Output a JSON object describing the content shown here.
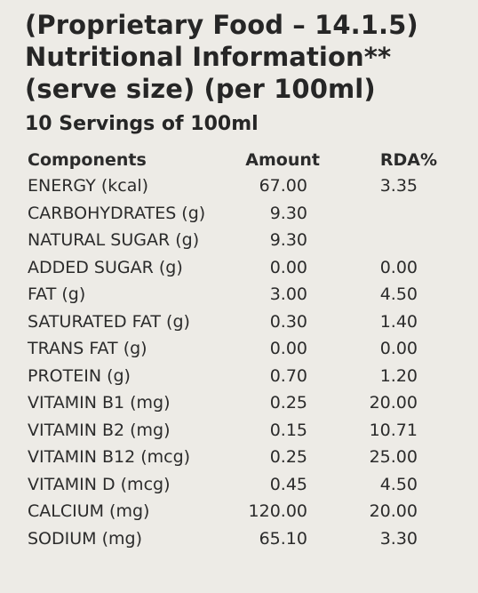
{
  "title_lines": [
    "(Proprietary Food – 14.1.5)",
    "Nutritional Information**",
    "(serve size) (per 100ml)"
  ],
  "servings": "10 Servings of 100ml",
  "columns": [
    "Components",
    "Amount",
    "RDA%"
  ],
  "rows": [
    {
      "name": "ENERGY (kcal)",
      "amount": "67.00",
      "rda": "3.35"
    },
    {
      "name": "CARBOHYDRATES (g)",
      "amount": "9.30",
      "rda": ""
    },
    {
      "name": "NATURAL SUGAR (g)",
      "amount": "9.30",
      "rda": ""
    },
    {
      "name": "ADDED SUGAR (g)",
      "amount": "0.00",
      "rda": "0.00"
    },
    {
      "name": "FAT (g)",
      "amount": "3.00",
      "rda": "4.50"
    },
    {
      "name": "SATURATED FAT (g)",
      "amount": "0.30",
      "rda": "1.40"
    },
    {
      "name": "TRANS FAT (g)",
      "amount": "0.00",
      "rda": "0.00"
    },
    {
      "name": "PROTEIN (g)",
      "amount": "0.70",
      "rda": "1.20"
    },
    {
      "name": "VITAMIN B1 (mg)",
      "amount": "0.25",
      "rda": "20.00"
    },
    {
      "name": "VITAMIN B2 (mg)",
      "amount": "0.15",
      "rda": "10.71"
    },
    {
      "name": "VITAMIN B12 (mcg)",
      "amount": "0.25",
      "rda": "25.00"
    },
    {
      "name": "VITAMIN D (mcg)",
      "amount": "0.45",
      "rda": "4.50"
    },
    {
      "name": "CALCIUM (mg)",
      "amount": "120.00",
      "rda": "20.00"
    },
    {
      "name": "SODIUM (mg)",
      "amount": "65.10",
      "rda": "3.30"
    }
  ]
}
